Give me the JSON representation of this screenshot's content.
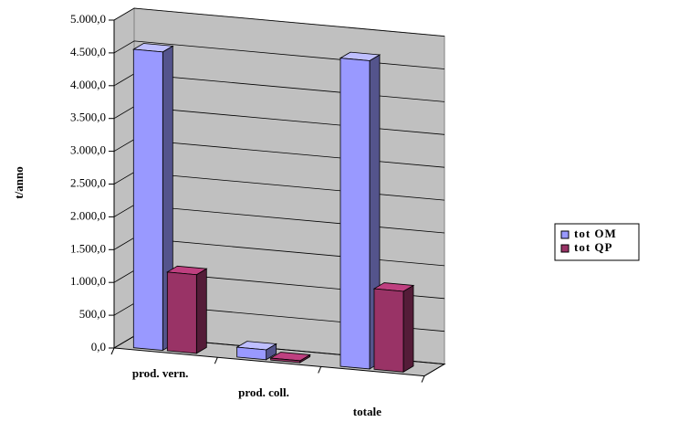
{
  "chart_data": {
    "type": "bar3d",
    "y_axis_label": "t/anno",
    "categories": [
      "prod. vern.",
      "prod. coll.",
      "totale"
    ],
    "series": [
      {
        "name": "tot OM",
        "color": "#9999ff",
        "values": [
          4550,
          150,
          4700
        ]
      },
      {
        "name": "tot QP",
        "color": "#993366",
        "values": [
          1200,
          30,
          1230
        ]
      }
    ],
    "ylim": [
      0,
      5000
    ],
    "yticks": [
      {
        "value": 0,
        "label": "0,0"
      },
      {
        "value": 500,
        "label": "500,0"
      },
      {
        "value": 1000,
        "label": "1.000,0"
      },
      {
        "value": 1500,
        "label": "1.500,0"
      },
      {
        "value": 2000,
        "label": "2.000,0"
      },
      {
        "value": 2500,
        "label": "2.500,0"
      },
      {
        "value": 3000,
        "label": "3.000,0"
      },
      {
        "value": 3500,
        "label": "3.500,0"
      },
      {
        "value": 4000,
        "label": "4.000,0"
      },
      {
        "value": 4500,
        "label": "4.500,0"
      },
      {
        "value": 5000,
        "label": "5.000,0"
      }
    ],
    "grid": true,
    "legend": "right"
  }
}
